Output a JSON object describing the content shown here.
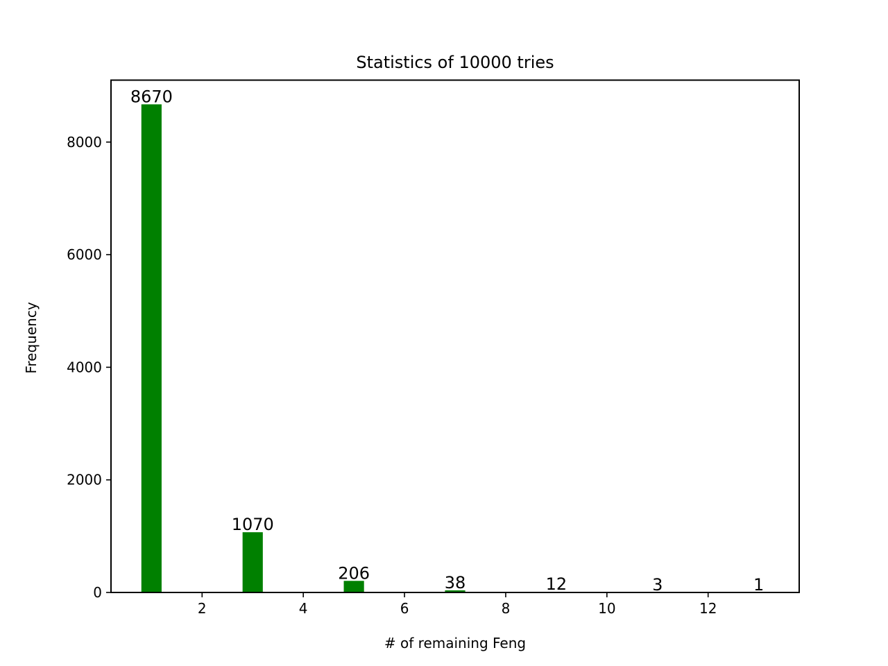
{
  "chart_data": {
    "type": "bar",
    "title": "Statistics of 10000 tries",
    "xlabel": "# of remaining Feng",
    "ylabel": "Frequency",
    "x": [
      1,
      3,
      5,
      7,
      9,
      11,
      13
    ],
    "values": [
      8670,
      1070,
      206,
      38,
      12,
      3,
      1
    ],
    "data_labels": [
      "8670",
      "1070",
      "206",
      "38",
      "12",
      "3",
      "1"
    ],
    "bar_width": 0.4,
    "xlim": [
      0.2,
      13.8
    ],
    "ylim": [
      0,
      9100
    ],
    "xticks": [
      2,
      4,
      6,
      8,
      10,
      12
    ],
    "xtick_labels": [
      "2",
      "4",
      "6",
      "8",
      "10",
      "12"
    ],
    "yticks": [
      0,
      2000,
      4000,
      6000,
      8000
    ],
    "ytick_labels": [
      "0",
      "2000",
      "4000",
      "6000",
      "8000"
    ],
    "bar_color": "#008000",
    "grid": false,
    "legend": "none"
  }
}
